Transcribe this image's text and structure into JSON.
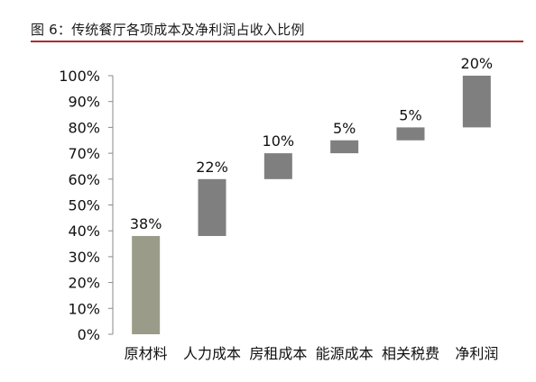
{
  "figure": {
    "title": "图 6：传统餐厅各项成本及净利润占收入比例"
  },
  "chart_data": {
    "type": "bar",
    "subtype": "waterfall",
    "categories": [
      "原材料",
      "人力成本",
      "房租成本",
      "能源成本",
      "相关税费",
      "净利润"
    ],
    "values": [
      38,
      22,
      10,
      5,
      5,
      20
    ],
    "base": [
      0,
      38,
      60,
      70,
      75,
      80
    ],
    "data_labels": [
      "38%",
      "22%",
      "10%",
      "5%",
      "5%",
      "20%"
    ],
    "colors": [
      "#9b9b8a",
      "#7f7f7f",
      "#7f7f7f",
      "#7f7f7f",
      "#7f7f7f",
      "#7f7f7f"
    ],
    "ylim": [
      0,
      100
    ],
    "yticks": [
      0,
      10,
      20,
      30,
      40,
      50,
      60,
      70,
      80,
      90,
      100
    ],
    "ytick_labels": [
      "0%",
      "10%",
      "20%",
      "30%",
      "40%",
      "50%",
      "60%",
      "70%",
      "80%",
      "90%",
      "100%"
    ],
    "grid": false,
    "legend": "none"
  }
}
